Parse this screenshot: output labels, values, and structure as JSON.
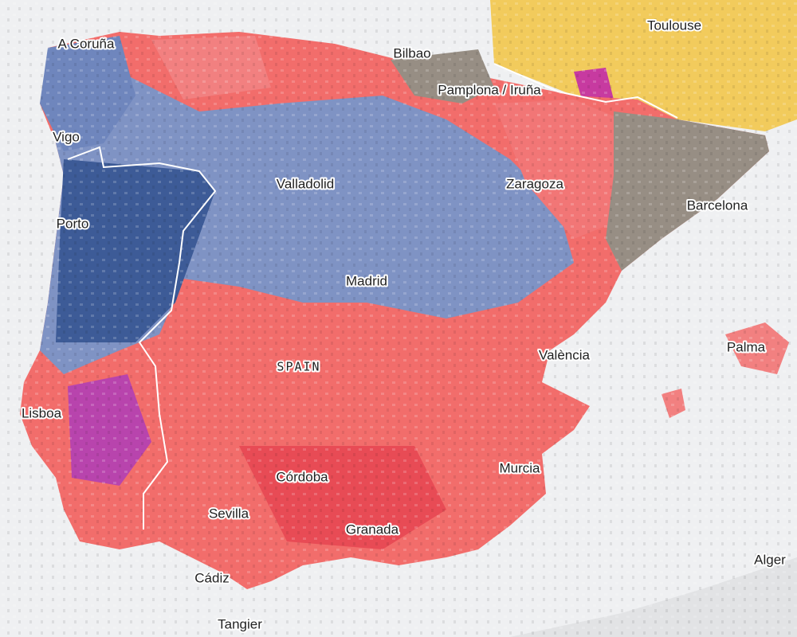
{
  "map": {
    "country_label": "SPAIN",
    "cities": [
      "A Coruña",
      "Bilbao",
      "Toulouse",
      "Pamplona / Iruña",
      "Vigo",
      "Valladolid",
      "Zaragoza",
      "Barcelona",
      "Porto",
      "Madrid",
      "València",
      "Palma",
      "Lisboa",
      "Murcia",
      "Córdoba",
      "Sevilla",
      "Granada",
      "Alger",
      "Cádiz",
      "Tangier"
    ]
  }
}
